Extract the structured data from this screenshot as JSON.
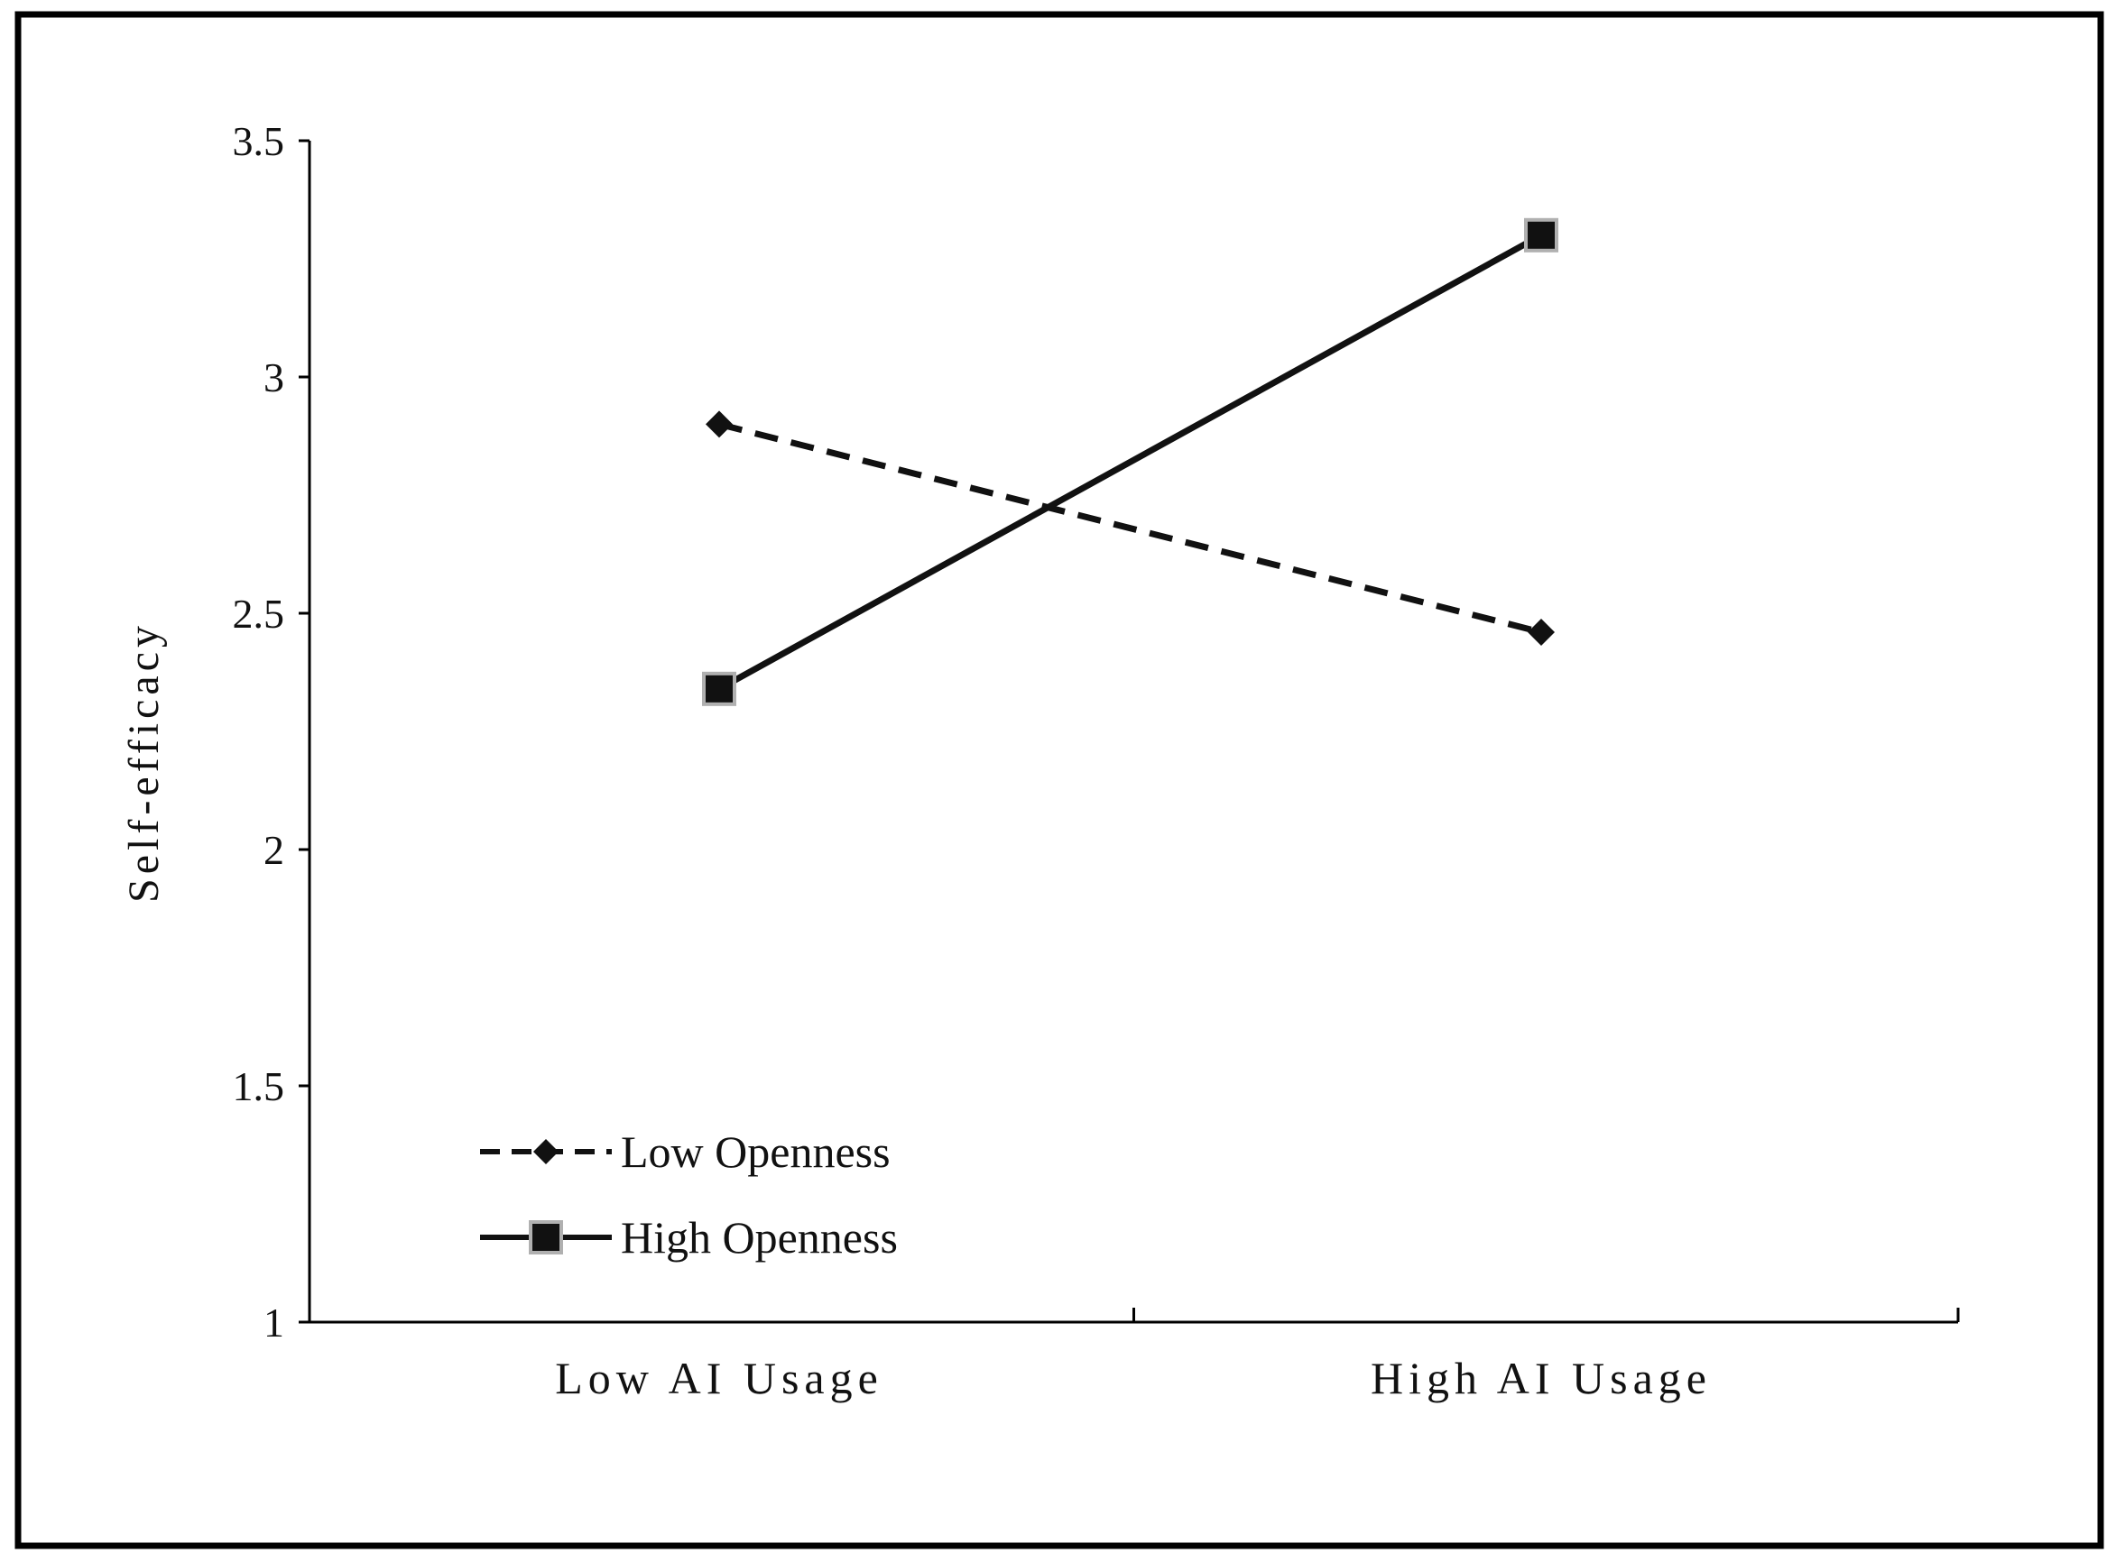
{
  "chart_data": {
    "type": "line",
    "categories": [
      "Low AI Usage",
      "High AI Usage"
    ],
    "ylabel": "Self-efficacy",
    "xlabel": "",
    "ylim": [
      1,
      3.5
    ],
    "yticks": [
      "1",
      "1.5",
      "2",
      "2.5",
      "3",
      "3.5"
    ],
    "grid": false,
    "legend": "bottom-left",
    "series": [
      {
        "name": "Low Openness",
        "values": [
          2.9,
          2.46
        ],
        "line_style": "dashed",
        "marker": "diamond",
        "color": "#111111"
      },
      {
        "name": "High Openness",
        "values": [
          2.34,
          3.3
        ],
        "line_style": "solid",
        "marker": "square",
        "color": "#111111",
        "marker_edge": "#b0b0b0"
      }
    ]
  }
}
